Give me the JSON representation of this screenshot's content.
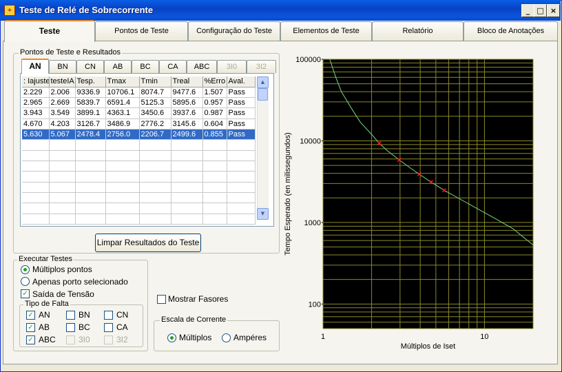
{
  "window": {
    "title": "Teste de Relé de Sobrecorrente",
    "minimize_glyph": "_",
    "maximize_glyph": "□",
    "close_glyph": "×"
  },
  "main_tabs": [
    "Teste",
    "Pontos de Teste",
    "Configuração do Teste",
    "Elementos de Teste",
    "Relatório",
    "Bloco de Anotações"
  ],
  "results_group": {
    "label": "Pontos de Teste e Resultados",
    "sub_tabs": [
      {
        "label": "AN",
        "enabled": true
      },
      {
        "label": "BN",
        "enabled": true
      },
      {
        "label": "CN",
        "enabled": true
      },
      {
        "label": "AB",
        "enabled": true
      },
      {
        "label": "BC",
        "enabled": true
      },
      {
        "label": "CA",
        "enabled": true
      },
      {
        "label": "ABC",
        "enabled": true
      },
      {
        "label": "3I0",
        "enabled": false
      },
      {
        "label": "3I2",
        "enabled": false
      }
    ],
    "columns": [
      ": Iajuste",
      "testeIA",
      "Tesp.",
      "Tmax",
      "Tmin",
      "Treal",
      "%Erro",
      "Aval."
    ],
    "rows": [
      [
        "2.229",
        "2.006",
        "9336.9",
        "10706.1",
        "8074.7",
        "9477.6",
        "1.507",
        "Pass"
      ],
      [
        "2.965",
        "2.669",
        "5839.7",
        "6591.4",
        "5125.3",
        "5895.6",
        "0.957",
        "Pass"
      ],
      [
        "3.943",
        "3.549",
        "3899.1",
        "4363.1",
        "3450.6",
        "3937.6",
        "0.987",
        "Pass"
      ],
      [
        "4.670",
        "4.203",
        "3126.7",
        "3486.9",
        "2776.2",
        "3145.6",
        "0.604",
        "Pass"
      ],
      [
        "5.630",
        "5.067",
        "2478.4",
        "2756.0",
        "2206.7",
        "2499.6",
        "0.855",
        "Pass"
      ]
    ],
    "selected_row": 4,
    "clear_button": "Limpar Resultados do Teste"
  },
  "execute": {
    "label": "Executar Testes",
    "option_multi": "Múltiplos pontos",
    "option_single": "Apenas porto selecionado",
    "selected": "multi",
    "voltage_output": "Saída de Tensão",
    "voltage_output_checked": true
  },
  "fault_type": {
    "label": "Tipo de Falta",
    "items": [
      {
        "label": "AN",
        "checked": true,
        "enabled": true
      },
      {
        "label": "BN",
        "checked": false,
        "enabled": true
      },
      {
        "label": "CN",
        "checked": false,
        "enabled": true
      },
      {
        "label": "AB",
        "checked": true,
        "enabled": true
      },
      {
        "label": "BC",
        "checked": false,
        "enabled": true
      },
      {
        "label": "CA",
        "checked": false,
        "enabled": true
      },
      {
        "label": "ABC",
        "checked": true,
        "enabled": true
      },
      {
        "label": "3I0",
        "checked": false,
        "enabled": false
      },
      {
        "label": "3I2",
        "checked": false,
        "enabled": false
      }
    ]
  },
  "show_phasors": {
    "label": "Mostrar Fasores",
    "checked": false
  },
  "current_scale": {
    "label": "Escala de Corrente",
    "option_multiples": "Múltiplos",
    "option_amperes": "Ampéres",
    "selected": "multiples"
  },
  "chart_data": {
    "type": "line",
    "title": "",
    "xlabel": "Múltiplos de Iset",
    "ylabel": "Tempo Esperado (en milissegundos)",
    "x_scale": "log",
    "y_scale": "log",
    "xlim": [
      1,
      20
    ],
    "ylim": [
      50,
      100000
    ],
    "x_ticks": [
      "1",
      "10"
    ],
    "y_ticks": [
      "100000",
      "10000",
      "1000",
      "100"
    ],
    "grid": true,
    "background": "#000000",
    "grid_color": "#8a8a2c",
    "series": [
      {
        "kind": "line",
        "color": "#7dd87d",
        "x": [
          1.1,
          1.2,
          1.3,
          1.5,
          1.7,
          2.0,
          2.229,
          2.5,
          2.965,
          3.5,
          3.943,
          4.67,
          5.63,
          7.0,
          9.0,
          12.0,
          15.0,
          20.0
        ],
        "y": [
          100000,
          60000,
          40000,
          25000,
          17000,
          12000,
          9336.9,
          7600,
          5839.7,
          4600,
          3899.1,
          3126.7,
          2478.4,
          1950,
          1480,
          1080,
          840,
          530
        ]
      },
      {
        "kind": "points",
        "color": "#ff2020",
        "x": [
          2.229,
          2.965,
          3.943,
          4.67,
          5.63
        ],
        "y": [
          9336.9,
          5839.7,
          3899.1,
          3126.7,
          2478.4
        ]
      }
    ]
  }
}
